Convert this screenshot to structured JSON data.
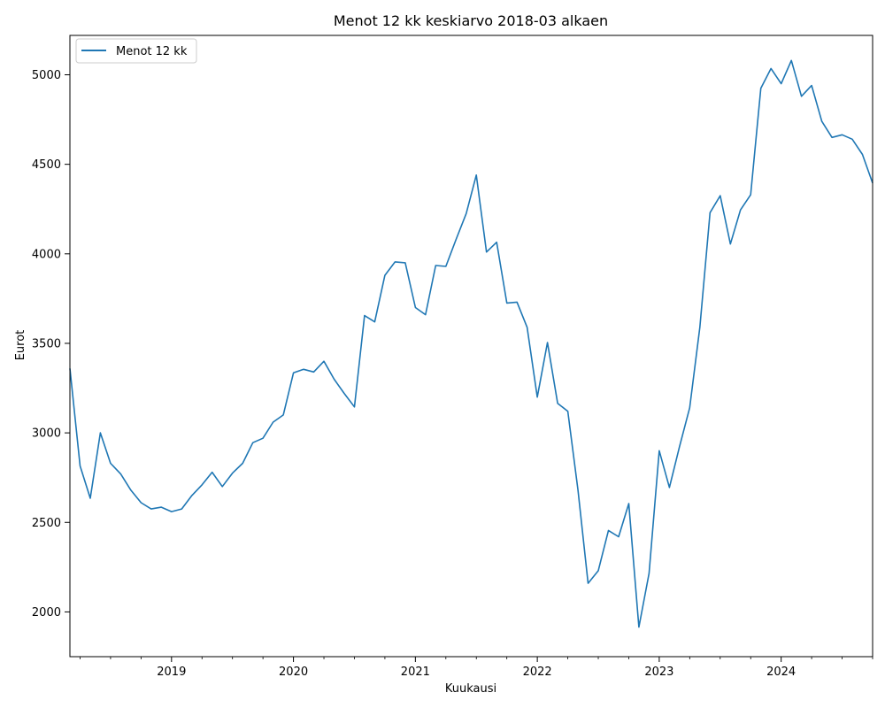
{
  "chart_data": {
    "type": "line",
    "title": "Menot 12 kk keskiarvo 2018-03 alkaen",
    "xlabel": "Kuukausi",
    "ylabel": "Eurot",
    "legend_position": "top-left",
    "grid": false,
    "x_start": "2018-03",
    "x_end": "2024-10",
    "xlim": [
      "2018-03",
      "2024-10"
    ],
    "ylim": [
      1750,
      5220
    ],
    "x_ticks": [
      {
        "month": "2019-01",
        "label": "2019"
      },
      {
        "month": "2020-01",
        "label": "2020"
      },
      {
        "month": "2021-01",
        "label": "2021"
      },
      {
        "month": "2022-01",
        "label": "2022"
      },
      {
        "month": "2023-01",
        "label": "2023"
      },
      {
        "month": "2024-01",
        "label": "2024"
      }
    ],
    "y_ticks": [
      2000,
      2500,
      3000,
      3500,
      4000,
      4500,
      5000
    ],
    "series": [
      {
        "name": "Menot 12 kk",
        "color": "#1f77b4",
        "x": [
          "2018-03",
          "2018-04",
          "2018-05",
          "2018-06",
          "2018-07",
          "2018-08",
          "2018-09",
          "2018-10",
          "2018-11",
          "2018-12",
          "2019-01",
          "2019-02",
          "2019-03",
          "2019-04",
          "2019-05",
          "2019-06",
          "2019-07",
          "2019-08",
          "2019-09",
          "2019-10",
          "2019-11",
          "2019-12",
          "2020-01",
          "2020-02",
          "2020-03",
          "2020-04",
          "2020-05",
          "2020-06",
          "2020-07",
          "2020-08",
          "2020-09",
          "2020-10",
          "2020-11",
          "2020-12",
          "2021-01",
          "2021-02",
          "2021-03",
          "2021-04",
          "2021-05",
          "2021-06",
          "2021-07",
          "2021-08",
          "2021-09",
          "2021-10",
          "2021-11",
          "2021-12",
          "2022-01",
          "2022-02",
          "2022-03",
          "2022-04",
          "2022-05",
          "2022-06",
          "2022-07",
          "2022-08",
          "2022-09",
          "2022-10",
          "2022-11",
          "2022-12",
          "2023-01",
          "2023-02",
          "2023-03",
          "2023-04",
          "2023-05",
          "2023-06",
          "2023-07",
          "2023-08",
          "2023-09",
          "2023-10",
          "2023-11",
          "2023-12",
          "2024-01",
          "2024-02",
          "2024-03",
          "2024-04",
          "2024-05",
          "2024-06",
          "2024-07",
          "2024-08",
          "2024-09",
          "2024-10"
        ],
        "values": [
          3360,
          2815,
          2635,
          3000,
          2830,
          2770,
          2680,
          2610,
          2575,
          2585,
          2560,
          2575,
          2650,
          2710,
          2780,
          2700,
          2775,
          2830,
          2945,
          2970,
          3060,
          3100,
          3335,
          3355,
          3340,
          3400,
          3300,
          3220,
          3145,
          3655,
          3620,
          3880,
          3955,
          3950,
          3700,
          3660,
          3935,
          3930,
          4080,
          4225,
          4440,
          4010,
          4065,
          3725,
          3730,
          3590,
          3200,
          3505,
          3165,
          3120,
          2680,
          2160,
          2230,
          2455,
          2420,
          2605,
          1915,
          2215,
          2900,
          2695,
          2925,
          3140,
          3590,
          4230,
          4325,
          4055,
          4245,
          4330,
          4925,
          5035,
          4950,
          5080,
          4880,
          4940,
          4740,
          4650,
          4665,
          4640,
          4555,
          4395
        ]
      }
    ]
  }
}
